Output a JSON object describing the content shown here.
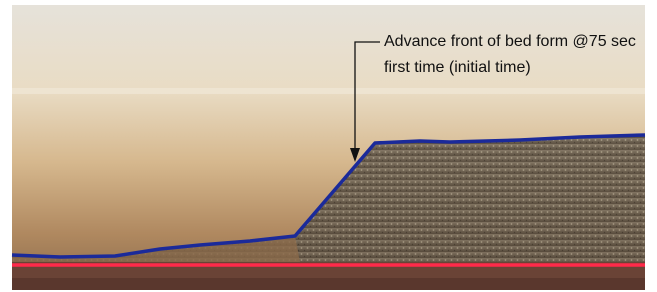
{
  "annotation": {
    "lines": [
      "Advance front of bed form @75 sec",
      "first time (initial time)"
    ]
  }
}
